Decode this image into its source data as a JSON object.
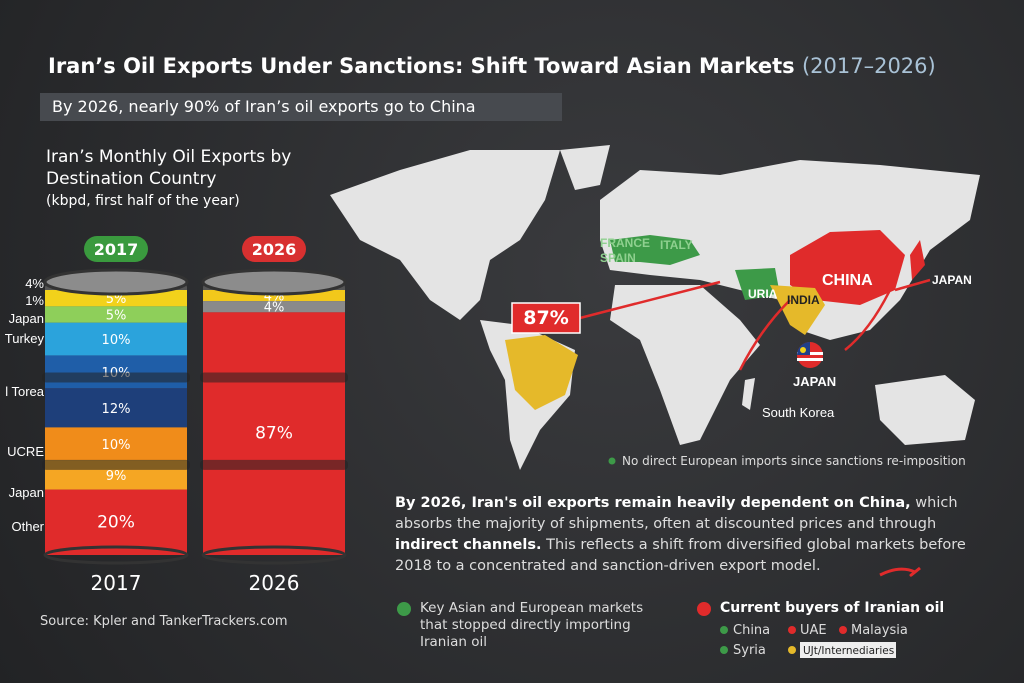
{
  "header": {
    "title": "Iran’s Oil Exports Under Sanctions: Shift Toward Asian Markets",
    "title_years": "(2017–2026)",
    "subtitle": "By 2026, nearly 90% of Iran’s oil exports go to China"
  },
  "chart_data": {
    "type": "barrel",
    "title": "Iran’s Monthly Oil Exports by Destination Country",
    "subtitle": "(kbpd, first half of the year)",
    "categories": [
      "2017",
      "2026"
    ],
    "side_labels": [
      "4%",
      "1%",
      "Japan",
      "Turkey",
      "l Torea",
      "UCRE",
      "Japan",
      "Other"
    ],
    "barrels": [
      {
        "values": [
          5,
          5,
          10,
          10,
          12,
          10,
          9,
          20
        ],
        "value_labels": [
          "5%",
          "5%",
          "10%",
          "10%",
          "12%",
          "10%",
          "9%",
          "20%"
        ],
        "colors": [
          "#f2d21b",
          "#8ecf5a",
          "#2ba3dc",
          "#1f5ea8",
          "#1e3f7a",
          "#f08c1a",
          "#f5a623",
          "#e02b2b"
        ]
      },
      {
        "values": [
          4,
          4,
          87
        ],
        "value_labels": [
          "4%",
          "4%",
          "87%"
        ],
        "colors": [
          "#f2c81b",
          "#8a8a8a",
          "#e02b2b"
        ]
      }
    ],
    "pill_colors": [
      "#3a9a3e",
      "#d83030"
    ]
  },
  "map": {
    "labels": [
      "FRANCE",
      "SPAIN",
      "ITALY",
      "CHINA",
      "JAPAN",
      "URIA",
      "INDIA",
      "JAPAN",
      "South Korea"
    ],
    "annotation": "87%",
    "note": "No direct European imports since sanctions re-imposition"
  },
  "text": {
    "bold": "By 2026, Iran's oil exports remain heavily dependent on China,",
    "p1": " which absorbs the majority of shipments, often at discounted prices and through ",
    "p2": "indirect channels.",
    "p3": " This reflects a shift from diversified global markets before 2018 to a concentrated and sanction-driven export model."
  },
  "legend": {
    "left": "Key Asian and European markets that stopped directly importing Iranian oil",
    "right_title": "Current buyers of Iranian oil",
    "items": [
      "China",
      "UAE",
      "Malaysia",
      "Syria",
      "UJt/Internediaries"
    ]
  },
  "source": "Source: Kpler and TankerTrackers.com"
}
